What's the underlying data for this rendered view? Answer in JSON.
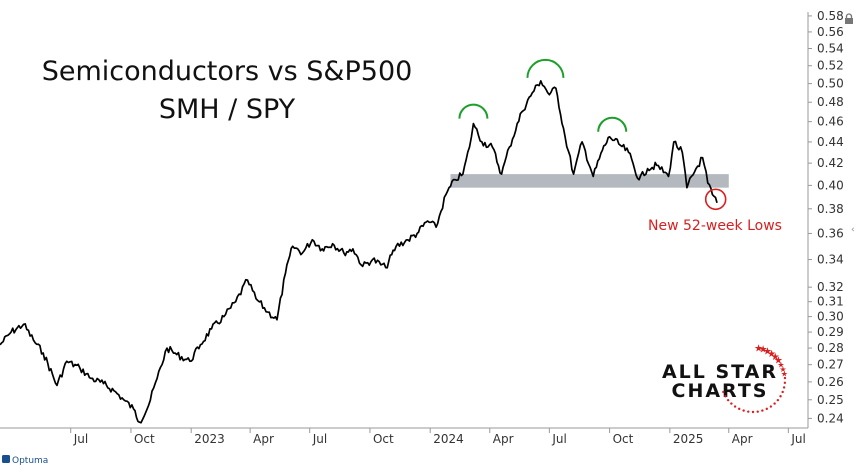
{
  "chart_data": {
    "type": "line",
    "title": "Semiconductors vs S&P500",
    "subtitle": "SMH / SPY",
    "y_scale": "log",
    "ylim": [
      0.235,
      0.585
    ],
    "xlim": [
      "2022-03-15",
      "2025-07-31"
    ],
    "x_tick_labels": [
      "Jul",
      "Oct",
      "2023",
      "Apr",
      "Jul",
      "Oct",
      "2024",
      "Apr",
      "Jul",
      "Oct",
      "2025",
      "Apr",
      "Jul"
    ],
    "x_tick_dates": [
      "2022-07-01",
      "2022-10-01",
      "2023-01-01",
      "2023-04-01",
      "2023-07-01",
      "2023-10-01",
      "2024-01-01",
      "2024-04-01",
      "2024-07-01",
      "2024-10-01",
      "2025-01-01",
      "2025-04-01",
      "2025-07-01"
    ],
    "y_ticks": [
      0.24,
      0.25,
      0.26,
      0.27,
      0.28,
      0.29,
      0.3,
      0.31,
      0.32,
      0.34,
      0.36,
      0.38,
      0.4,
      0.42,
      0.44,
      0.46,
      0.48,
      0.5,
      0.52,
      0.54,
      0.56,
      0.58
    ],
    "y_tick_labels": [
      "0.24",
      "0.25",
      "0.26",
      "0.27",
      "0.28",
      "0.29",
      "0.30",
      "0.31",
      "0.32",
      "0.34",
      "0.36",
      "0.38",
      "0.40",
      "0.42",
      "0.44",
      "0.46",
      "0.48",
      "0.50",
      "0.52",
      "0.54",
      "0.56",
      "0.58"
    ],
    "grid": false,
    "series": [
      {
        "color": "#000000",
        "points": [
          [
            "2022-03-15",
            0.282
          ],
          [
            "2022-04-01",
            0.29
          ],
          [
            "2022-04-20",
            0.295
          ],
          [
            "2022-05-05",
            0.285
          ],
          [
            "2022-05-20",
            0.277
          ],
          [
            "2022-06-10",
            0.258
          ],
          [
            "2022-06-25",
            0.272
          ],
          [
            "2022-07-15",
            0.268
          ],
          [
            "2022-08-01",
            0.262
          ],
          [
            "2022-08-20",
            0.259
          ],
          [
            "2022-09-05",
            0.255
          ],
          [
            "2022-09-20",
            0.25
          ],
          [
            "2022-10-05",
            0.245
          ],
          [
            "2022-10-14",
            0.238
          ],
          [
            "2022-10-28",
            0.247
          ],
          [
            "2022-11-10",
            0.262
          ],
          [
            "2022-11-25",
            0.28
          ],
          [
            "2022-12-10",
            0.276
          ],
          [
            "2022-12-30",
            0.272
          ],
          [
            "2023-01-15",
            0.282
          ],
          [
            "2023-02-01",
            0.292
          ],
          [
            "2023-02-20",
            0.3
          ],
          [
            "2023-03-10",
            0.31
          ],
          [
            "2023-03-28",
            0.325
          ],
          [
            "2023-04-10",
            0.312
          ],
          [
            "2023-04-28",
            0.303
          ],
          [
            "2023-05-12",
            0.298
          ],
          [
            "2023-05-25",
            0.33
          ],
          [
            "2023-06-05",
            0.35
          ],
          [
            "2023-06-20",
            0.345
          ],
          [
            "2023-07-05",
            0.355
          ],
          [
            "2023-07-20",
            0.348
          ],
          [
            "2023-08-05",
            0.352
          ],
          [
            "2023-08-22",
            0.345
          ],
          [
            "2023-09-05",
            0.348
          ],
          [
            "2023-09-20",
            0.335
          ],
          [
            "2023-10-05",
            0.34
          ],
          [
            "2023-10-25",
            0.334
          ],
          [
            "2023-11-10",
            0.35
          ],
          [
            "2023-11-28",
            0.355
          ],
          [
            "2023-12-12",
            0.36
          ],
          [
            "2023-12-28",
            0.37
          ],
          [
            "2024-01-10",
            0.365
          ],
          [
            "2024-01-25",
            0.392
          ],
          [
            "2024-02-08",
            0.405
          ],
          [
            "2024-02-20",
            0.41
          ],
          [
            "2024-03-01",
            0.435
          ],
          [
            "2024-03-07",
            0.458
          ],
          [
            "2024-03-20",
            0.44
          ],
          [
            "2024-04-05",
            0.435
          ],
          [
            "2024-04-19",
            0.41
          ],
          [
            "2024-05-01",
            0.435
          ],
          [
            "2024-05-20",
            0.47
          ],
          [
            "2024-06-05",
            0.49
          ],
          [
            "2024-06-18",
            0.503
          ],
          [
            "2024-07-01",
            0.488
          ],
          [
            "2024-07-11",
            0.495
          ],
          [
            "2024-07-25",
            0.445
          ],
          [
            "2024-08-07",
            0.41
          ],
          [
            "2024-08-20",
            0.44
          ],
          [
            "2024-09-06",
            0.408
          ],
          [
            "2024-09-20",
            0.432
          ],
          [
            "2024-10-01",
            0.445
          ],
          [
            "2024-10-15",
            0.438
          ],
          [
            "2024-10-30",
            0.43
          ],
          [
            "2024-11-15",
            0.405
          ],
          [
            "2024-11-28",
            0.415
          ],
          [
            "2024-12-12",
            0.418
          ],
          [
            "2024-12-30",
            0.408
          ],
          [
            "2025-01-07",
            0.44
          ],
          [
            "2025-01-20",
            0.43
          ],
          [
            "2025-01-27",
            0.398
          ],
          [
            "2025-02-10",
            0.415
          ],
          [
            "2025-02-20",
            0.425
          ],
          [
            "2025-02-28",
            0.402
          ],
          [
            "2025-03-07",
            0.392
          ],
          [
            "2025-03-14",
            0.385
          ]
        ]
      }
    ],
    "support_band": [
      0.398,
      0.41
    ],
    "arc_annotations": [
      {
        "date": "2024-03-07",
        "value": 0.458
      },
      {
        "date": "2024-06-25",
        "value": 0.503
      },
      {
        "date": "2024-10-05",
        "value": 0.445
      }
    ],
    "circle_annotation": {
      "date": "2025-03-12",
      "value": 0.388
    },
    "annotation_text": "New 52-week Lows",
    "colors": {
      "line": "#000000",
      "band": "#b4b9c0",
      "arc": "#1e9e2a",
      "highlight": "#d82020",
      "axis": "#999999"
    }
  },
  "branding": {
    "line1": "ALL STAR",
    "line2": "CHARTS"
  },
  "footer": {
    "source": "Optuma"
  }
}
